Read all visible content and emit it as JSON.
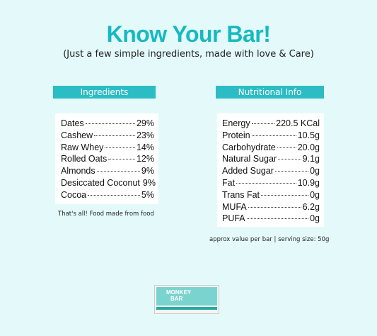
{
  "header": {
    "title": "Know Your Bar!",
    "subtitle": "(Just a few simple ingredients, made with love & Care)"
  },
  "ingredients": {
    "heading": "Ingredients",
    "rows": [
      [
        "Dates",
        "29%"
      ],
      [
        "Cashew",
        "23%"
      ],
      [
        "Raw Whey",
        "14%"
      ],
      [
        "Rolled Oats",
        "12%"
      ],
      [
        "Almonds",
        "9%"
      ],
      [
        "Desiccated Coconut",
        "9%"
      ],
      [
        "Cocoa",
        "5%"
      ]
    ],
    "note": "That's all! Food made from food"
  },
  "nutrition": {
    "heading": "Nutritional Info",
    "rows": [
      [
        "Energy",
        "220.5 KCal"
      ],
      [
        "Protein",
        "10.5g"
      ],
      [
        "Carbohydrate",
        "20.0g"
      ],
      [
        "Natural Sugar",
        "9.1g"
      ],
      [
        "Added Sugar",
        "0g"
      ],
      [
        "Fat",
        "10.9g"
      ],
      [
        "Trans Fat",
        "0g"
      ],
      [
        "MUFA",
        "6.2g"
      ],
      [
        "PUFA",
        "0g"
      ]
    ],
    "note": "approx value per bar | serving size: 50g"
  },
  "product": {
    "brand": "MONKEY",
    "name": "BAR"
  }
}
